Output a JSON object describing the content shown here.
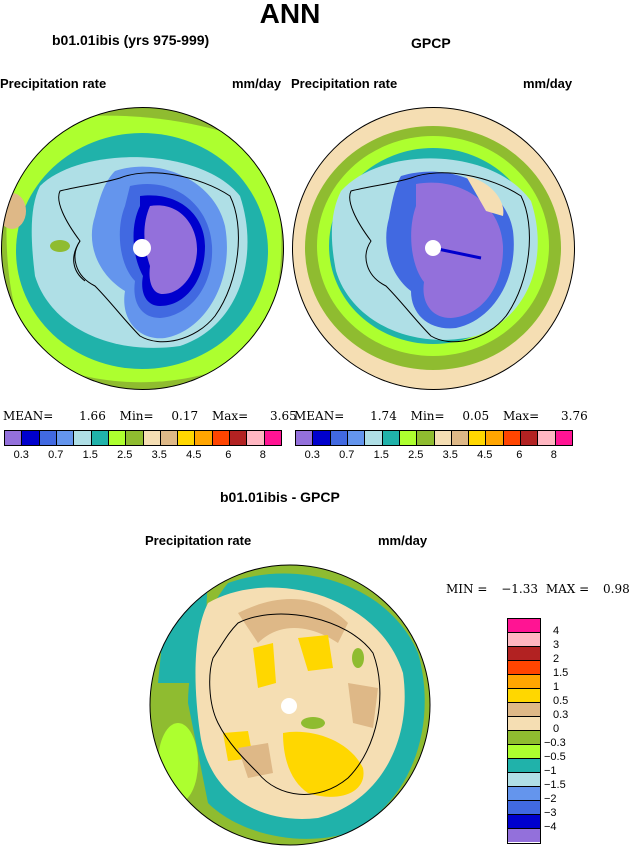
{
  "title": "ANN",
  "left_panel": {
    "case_title": "b01.01ibis (yrs 975-999)",
    "var_label": "Precipitation rate",
    "units": "mm/day",
    "stats": {
      "mean_label": "MEAN=",
      "mean": "1.66",
      "min_label": "Min=",
      "min": "0.17",
      "max_label": "Max=",
      "max": "3.65"
    }
  },
  "right_panel": {
    "case_title": "GPCP",
    "var_label": "Precipitation rate",
    "units": "mm/day",
    "stats": {
      "mean_label": "MEAN=",
      "mean": "1.74",
      "min_label": "Min=",
      "min": "0.05",
      "max_label": "Max=",
      "max": "3.76"
    }
  },
  "top_colorbar": {
    "colors": [
      "#9370db",
      "#0000cd",
      "#4169e1",
      "#6495ed",
      "#afdfe6",
      "#20b2aa",
      "#adff2f",
      "#8fbc30",
      "#f5deb3",
      "#deb887",
      "#ffd700",
      "#ffa500",
      "#ff4500",
      "#b22222",
      "#ffb6c1",
      "#ff1493"
    ],
    "tick_labels": [
      "0.3",
      "0.7",
      "1.5",
      "2.5",
      "3.5",
      "4.5",
      "6",
      "8"
    ]
  },
  "diff_panel": {
    "title": "b01.01ibis - GPCP",
    "var_label": "Precipitation rate",
    "units": "mm/day",
    "stats": {
      "min_label": "MIN =",
      "min": "−1.33",
      "max_label": "MAX =",
      "max": "0.98"
    }
  },
  "diff_colorbar": {
    "colors": [
      "#ff1493",
      "#ffb6c1",
      "#b22222",
      "#ff4500",
      "#ffa500",
      "#ffd700",
      "#deb887",
      "#f5deb3",
      "#8fbc30",
      "#adff2f",
      "#20b2aa",
      "#afdfe6",
      "#6495ed",
      "#4169e1",
      "#0000cd",
      "#9370db"
    ],
    "labels": [
      "4",
      "3",
      "2",
      "1.5",
      "1",
      "0.5",
      "0.3",
      "0",
      "−0.3",
      "−0.5",
      "−1",
      "−1.5",
      "−2",
      "−3",
      "−4"
    ]
  }
}
